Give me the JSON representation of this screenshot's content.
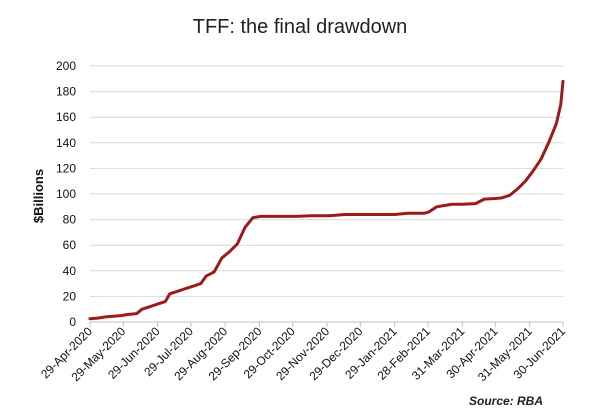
{
  "chart_data": {
    "type": "line",
    "title": "TFF: the final drawdown",
    "ylabel": "$Billions",
    "xlabel": "",
    "source": "Source: RBA",
    "ylim": [
      0,
      200
    ],
    "yticks": [
      0,
      20,
      40,
      60,
      80,
      100,
      120,
      140,
      160,
      180,
      200
    ],
    "xlim": [
      "2020-04-29",
      "2021-06-30"
    ],
    "xticks": [
      {
        "date": "2020-04-29",
        "label": "29-Apr-2020"
      },
      {
        "date": "2020-05-29",
        "label": "29-May-2020"
      },
      {
        "date": "2020-06-29",
        "label": "29-Jun-2020"
      },
      {
        "date": "2020-07-29",
        "label": "29-Jul-2020"
      },
      {
        "date": "2020-08-29",
        "label": "29-Aug-2020"
      },
      {
        "date": "2020-09-29",
        "label": "29-Sep-2020"
      },
      {
        "date": "2020-10-29",
        "label": "29-Oct-2020"
      },
      {
        "date": "2020-11-29",
        "label": "29-Nov-2020"
      },
      {
        "date": "2020-12-29",
        "label": "29-Dec-2020"
      },
      {
        "date": "2021-01-29",
        "label": "29-Jan-2021"
      },
      {
        "date": "2021-02-28",
        "label": "28-Feb-2021"
      },
      {
        "date": "2021-03-31",
        "label": "31-Mar-2021"
      },
      {
        "date": "2021-04-30",
        "label": "30-Apr-2021"
      },
      {
        "date": "2021-05-31",
        "label": "31-May-2021"
      },
      {
        "date": "2021-06-30",
        "label": "30-Jun-2021"
      }
    ],
    "grid": true,
    "legend": "none",
    "series": [
      {
        "color": "#9b1b1b",
        "points": [
          [
            "2020-04-29",
            2.5
          ],
          [
            "2020-05-06",
            3
          ],
          [
            "2020-05-13",
            4
          ],
          [
            "2020-05-20",
            4.5
          ],
          [
            "2020-05-27",
            5
          ],
          [
            "2020-06-03",
            6
          ],
          [
            "2020-06-10",
            6.5
          ],
          [
            "2020-06-15",
            10
          ],
          [
            "2020-06-22",
            12
          ],
          [
            "2020-06-29",
            14
          ],
          [
            "2020-07-06",
            16
          ],
          [
            "2020-07-10",
            22
          ],
          [
            "2020-07-17",
            24
          ],
          [
            "2020-07-24",
            26
          ],
          [
            "2020-07-31",
            28
          ],
          [
            "2020-08-07",
            30
          ],
          [
            "2020-08-12",
            36
          ],
          [
            "2020-08-19",
            39
          ],
          [
            "2020-08-26",
            50
          ],
          [
            "2020-09-02",
            55
          ],
          [
            "2020-09-09",
            61
          ],
          [
            "2020-09-16",
            74
          ],
          [
            "2020-09-23",
            81.5
          ],
          [
            "2020-09-30",
            82.5
          ],
          [
            "2020-10-15",
            82.5
          ],
          [
            "2020-11-01",
            82.5
          ],
          [
            "2020-11-15",
            83
          ],
          [
            "2020-12-01",
            83
          ],
          [
            "2020-12-15",
            84
          ],
          [
            "2021-01-01",
            84
          ],
          [
            "2021-01-20",
            84
          ],
          [
            "2021-01-29",
            84
          ],
          [
            "2021-02-10",
            85
          ],
          [
            "2021-02-25",
            85
          ],
          [
            "2021-03-01",
            86
          ],
          [
            "2021-03-08",
            90
          ],
          [
            "2021-03-15",
            91
          ],
          [
            "2021-03-22",
            92
          ],
          [
            "2021-03-31",
            92
          ],
          [
            "2021-04-12",
            92.5
          ],
          [
            "2021-04-20",
            96
          ],
          [
            "2021-04-30",
            96.5
          ],
          [
            "2021-05-06",
            97
          ],
          [
            "2021-05-13",
            99
          ],
          [
            "2021-05-20",
            104
          ],
          [
            "2021-05-27",
            110
          ],
          [
            "2021-06-03",
            118
          ],
          [
            "2021-06-10",
            127
          ],
          [
            "2021-06-17",
            140
          ],
          [
            "2021-06-24",
            155
          ],
          [
            "2021-06-28",
            170
          ],
          [
            "2021-06-30",
            188
          ]
        ]
      }
    ]
  }
}
